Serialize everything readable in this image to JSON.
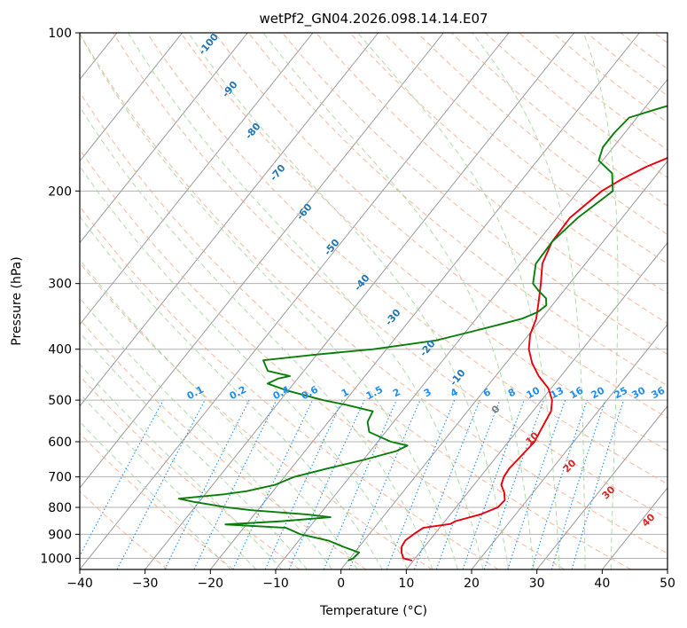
{
  "chart_data": {
    "type": "line",
    "title": "wetPf2_GN04.2026.098.14.14.E07",
    "xlabel": "Temperature (°C)",
    "ylabel": "Pressure (hPa)",
    "xlim": [
      -40,
      50
    ],
    "ylim": [
      1050,
      100
    ],
    "y_scale": "log",
    "grid": true,
    "x_ticks": [
      -40,
      -30,
      -20,
      -10,
      0,
      10,
      20,
      30,
      40,
      50
    ],
    "y_ticks": [
      100,
      200,
      300,
      400,
      500,
      600,
      700,
      800,
      900,
      1000
    ],
    "colors": {
      "temperature": "#e8000b",
      "dewpoint": "#0a7d0a",
      "isotherm": "#9a9a9a",
      "dry_adiabat": "#f4a582",
      "moist_adiabat": "#a6d7a0",
      "mixing_ratio": "#1f8ef1",
      "grid": "#b0b0b0"
    },
    "series": [
      {
        "id": "temperature",
        "p": [
          1010,
          1000,
          975,
          950,
          925,
          900,
          875,
          860,
          850,
          825,
          800,
          775,
          750,
          725,
          700,
          675,
          650,
          625,
          600,
          575,
          550,
          525,
          500,
          475,
          450,
          425,
          400,
          375,
          350,
          325,
          300,
          275,
          250,
          225,
          200,
          190,
          180,
          170,
          160,
          150,
          140,
          130,
          125,
          120,
          110,
          100
        ],
        "t": [
          9.8,
          8.2,
          7.2,
          6.5,
          6.3,
          6.8,
          7.5,
          11.2,
          11.6,
          14.6,
          16.4,
          16.6,
          15.6,
          14.2,
          13.6,
          13.4,
          13.6,
          13.8,
          14.0,
          13.6,
          13.2,
          12.8,
          11.6,
          9.6,
          6.6,
          4.0,
          1.8,
          0.2,
          -0.8,
          -2.5,
          -4.4,
          -6.6,
          -7.8,
          -8.0,
          -6.4,
          -4.8,
          -2.6,
          0.6,
          4.4,
          6.8,
          8.6,
          10.6,
          11.4,
          13.4,
          17.4,
          21.0
        ]
      },
      {
        "id": "dewpoint",
        "p": [
          1010,
          1000,
          975,
          950,
          925,
          900,
          875,
          862,
          850,
          835,
          825,
          810,
          800,
          780,
          770,
          755,
          745,
          725,
          700,
          675,
          650,
          625,
          610,
          600,
          575,
          550,
          525,
          510,
          500,
          480,
          465,
          455,
          450,
          440,
          430,
          420,
          410,
          400,
          385,
          370,
          360,
          350,
          340,
          330,
          320,
          310,
          300,
          275,
          250,
          225,
          200,
          185,
          175,
          165,
          155,
          145,
          140,
          135,
          130,
          120,
          110,
          100
        ],
        "t": [
          0.0,
          0.5,
          0.7,
          -2.5,
          -5.5,
          -10.5,
          -13.5,
          -23.2,
          -15.0,
          -8.0,
          -12.0,
          -21.0,
          -25.0,
          -31.0,
          -33.5,
          -27.0,
          -24.0,
          -20.5,
          -18.5,
          -14.5,
          -10.0,
          -6.0,
          -5.0,
          -8.0,
          -12.5,
          -14.0,
          -14.5,
          -19.5,
          -23.5,
          -30.0,
          -34.0,
          -33.0,
          -31.5,
          -35.5,
          -36.5,
          -37.5,
          -30.5,
          -22.0,
          -13.5,
          -9.0,
          -6.0,
          -3.0,
          -1.4,
          -0.9,
          -1.8,
          -3.8,
          -5.6,
          -7.6,
          -7.8,
          -6.8,
          -4.7,
          -7.0,
          -10.6,
          -11.6,
          -11.6,
          -11.2,
          -8.2,
          -5.0,
          -2.6,
          0.8,
          3.6,
          6.6
        ]
      }
    ],
    "dry_adiabat_labels": [
      "10",
      "20",
      "30",
      "40"
    ],
    "moist_adiabat_labels": [
      "-100",
      "-90",
      "-80",
      "-70",
      "-60",
      "-50",
      "-40",
      "-30",
      "-20",
      "-10",
      "0"
    ],
    "mixing_ratio_labels": [
      "0.1",
      "0.2",
      "0.4",
      "0.6",
      "1",
      "1.5",
      "2",
      "3",
      "4",
      "6",
      "8",
      "10",
      "13",
      "16",
      "20",
      "25",
      "30",
      "36"
    ]
  }
}
